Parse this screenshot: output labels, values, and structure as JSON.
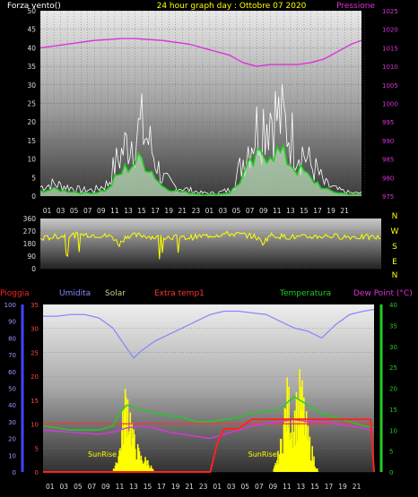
{
  "header": {
    "left": "Forza vento()",
    "center": "24 hour graph day : Ottobre 07 2020",
    "right": "Pressione"
  },
  "labels": {
    "pioggia": "Pioggia",
    "umidita": "Umidita",
    "solar": "Solar",
    "extra": "Extra temp1",
    "temperatura": "Temperatura",
    "dewpoint": "Dew Point (°C)",
    "sunrise": "SunRise"
  },
  "colors": {
    "wind": "#ffffff",
    "windAvg": "#22cc22",
    "pressure": "#dd33dd",
    "direction": "#ffff00",
    "rain": "#ff2222",
    "humidity": "#8888ff",
    "solar": "#ffff00",
    "extra": "#ff3333",
    "temperature": "#22cc22",
    "dewpoint": "#dd33dd"
  },
  "chart_data": [
    {
      "type": "line",
      "title": "24 hour graph day : Ottobre 07 2020",
      "ylim_left": [
        0,
        50
      ],
      "ylim_right": [
        975,
        1025
      ],
      "yticks_left": [
        "0",
        "5",
        "10",
        "15",
        "20",
        "25",
        "30",
        "35",
        "40",
        "45",
        "50"
      ],
      "yticks_right": [
        "975",
        "980",
        "985",
        "990",
        "995",
        "1000",
        "1005",
        "1010",
        "1015",
        "1020",
        "1025"
      ],
      "xticks": [
        "01",
        "03",
        "05",
        "07",
        "09",
        "11",
        "13",
        "15",
        "17",
        "19",
        "21",
        "23",
        "01",
        "03",
        "05",
        "07",
        "09",
        "11",
        "13",
        "15",
        "17",
        "19",
        "21"
      ],
      "series": [
        {
          "name": "Forza vento()",
          "x": [
            0,
            2,
            4,
            6,
            8,
            10,
            11,
            12,
            13,
            14,
            15,
            16,
            17,
            18,
            20,
            22,
            24,
            26,
            28,
            29,
            30,
            31,
            32,
            33,
            34,
            35,
            36,
            37,
            38,
            39,
            40,
            41,
            42,
            44,
            46,
            47.5
          ],
          "values": [
            3,
            4,
            3,
            2,
            2,
            4,
            10,
            14,
            18,
            20,
            22,
            18,
            12,
            6,
            3,
            2,
            1,
            1,
            2,
            6,
            12,
            18,
            22,
            25,
            28,
            26,
            24,
            20,
            16,
            14,
            10,
            8,
            4,
            2,
            1,
            1
          ]
        },
        {
          "name": "Pressione",
          "x": [
            0,
            4,
            8,
            12,
            14,
            18,
            22,
            24,
            26,
            28,
            30,
            32,
            34,
            36,
            38,
            40,
            42,
            44,
            46,
            47.5
          ],
          "values": [
            1015,
            1016,
            1017,
            1017.5,
            1017.5,
            1017,
            1016,
            1015,
            1014,
            1013,
            1011,
            1010,
            1010.5,
            1010.5,
            1010.5,
            1011,
            1012,
            1014,
            1016,
            1017
          ]
        }
      ]
    },
    {
      "type": "line",
      "ylim": [
        0,
        360
      ],
      "yticks": [
        "0",
        "90",
        "180",
        "270",
        "360"
      ],
      "compass": [
        "N",
        "W",
        "S",
        "E",
        "N"
      ],
      "xticks": [
        "01",
        "03",
        "05",
        "07",
        "09",
        "11",
        "13",
        "15",
        "17",
        "19",
        "21",
        "23",
        "01",
        "03",
        "05",
        "07",
        "09",
        "11",
        "13",
        "15",
        "17",
        "19",
        "21"
      ],
      "series": [
        {
          "name": "Direction",
          "x": [
            0,
            2,
            4,
            6,
            8,
            10,
            11,
            12,
            14,
            16,
            18,
            20,
            22,
            24,
            26,
            28,
            30,
            31,
            32,
            34,
            36,
            38,
            40,
            42,
            44,
            46,
            47.5
          ],
          "values": [
            215,
            230,
            240,
            245,
            240,
            230,
            175,
            235,
            240,
            225,
            230,
            220,
            230,
            240,
            250,
            245,
            230,
            185,
            240,
            230,
            225,
            230,
            235,
            230,
            228,
            225,
            222
          ]
        }
      ]
    },
    {
      "type": "line",
      "ylim_left": [
        0,
        100
      ],
      "yticks_left": [
        "0",
        "10",
        "20",
        "30",
        "40",
        "50",
        "60",
        "70",
        "80",
        "90",
        "100"
      ],
      "ylim_rain": [
        0,
        35
      ],
      "yticks_rain": [
        "0",
        "5",
        "10",
        "15",
        "20",
        "25",
        "30",
        "35"
      ],
      "ylim_right": [
        0,
        40
      ],
      "yticks_right": [
        "0",
        "5",
        "10",
        "15",
        "20",
        "25",
        "30",
        "35",
        "40"
      ],
      "xticks": [
        "01",
        "03",
        "05",
        "07",
        "09",
        "11",
        "13",
        "15",
        "17",
        "19",
        "21",
        "23",
        "01",
        "03",
        "05",
        "07",
        "09",
        "11",
        "13",
        "15",
        "17",
        "19",
        "21"
      ],
      "series": [
        {
          "name": "Umidita",
          "x": [
            0,
            2,
            4,
            6,
            8,
            10,
            12,
            13,
            14,
            16,
            18,
            20,
            22,
            24,
            26,
            28,
            30,
            32,
            34,
            36,
            38,
            40,
            42,
            44,
            46,
            47.5
          ],
          "values": [
            93,
            93,
            94,
            94,
            92,
            86,
            74,
            68,
            72,
            78,
            82,
            86,
            90,
            94,
            96,
            96,
            95,
            94,
            90,
            86,
            84,
            80,
            88,
            94,
            96,
            97
          ]
        },
        {
          "name": "Solar",
          "x": [
            10,
            11,
            12,
            13,
            14,
            15,
            16
          ],
          "values": [
            0,
            12,
            45,
            18,
            8,
            6,
            0
          ]
        },
        {
          "name": "Extra temp1",
          "x": [
            0,
            47.5
          ],
          "values": [
            11.5,
            11.5
          ]
        },
        {
          "name": "Temperatura",
          "x": [
            0,
            4,
            8,
            10,
            11,
            12,
            14,
            16,
            18,
            20,
            22,
            24,
            26,
            28,
            30,
            32,
            34,
            36,
            38,
            40,
            42,
            44,
            46,
            47.5
          ],
          "values": [
            11,
            10,
            10,
            11,
            14,
            16,
            15,
            14,
            13.5,
            13,
            12,
            12,
            12.5,
            13,
            14,
            14.5,
            15,
            18,
            16,
            14,
            13,
            12,
            11,
            10.5
          ]
        },
        {
          "name": "Dew Point (°C)",
          "x": [
            0,
            4,
            8,
            10,
            12,
            14,
            16,
            18,
            20,
            22,
            24,
            26,
            28,
            30,
            32,
            34,
            36,
            38,
            40,
            42,
            44,
            46,
            47.5
          ],
          "values": [
            10,
            9.5,
            9,
            9.5,
            10.5,
            11,
            10.5,
            9.5,
            9,
            8.5,
            8,
            9,
            10,
            11,
            11.5,
            12,
            12.5,
            12,
            12,
            11.5,
            11,
            10.5,
            9.5
          ]
        },
        {
          "name": "Pioggia",
          "x": [
            0,
            23,
            24,
            25,
            26,
            28,
            30,
            40,
            47,
            47.5
          ],
          "values": [
            0,
            0,
            0,
            6,
            9,
            9,
            11,
            11,
            11,
            0
          ]
        }
      ]
    }
  ]
}
